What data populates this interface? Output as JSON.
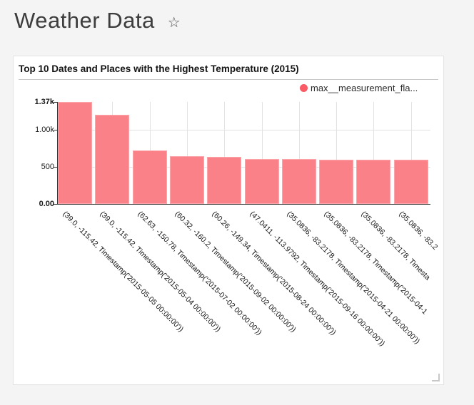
{
  "header": {
    "title": "Weather Data",
    "star_icon": "☆"
  },
  "card": {
    "title": "Top 10 Dates and Places with the Highest Temperature (2015)",
    "legend_label": "max__measurement_fla..."
  },
  "chart_data": {
    "type": "bar",
    "title": "Top 10 Dates and Places with the Highest Temperature (2015)",
    "legend": {
      "label": "max__measurement_fla...",
      "position": "top-right"
    },
    "categories": [
      "(39.0, -115.42, Timestamp('2015-05-05 00:00:00'))",
      "(39.0, -115.42, Timestamp('2015-05-04 00:00:00'))",
      "(62.63, -150.78, Timestamp('2015-07-02 00:00:00'))",
      "(60.32, -160.2, Timestamp('2015-09-02 00:00:00'))",
      "(60.26, -149.34, Timestamp('2015-08-24 00:00:00'))",
      "(47.0411, -113.9792, Timestamp('2015-09-16 00:00:00'))",
      "(35.0836, -83.2178, Timestamp('2015-04-21 00:00:00'))",
      "(35.0836, -83.2178, Timestamp('2015-04-1",
      "(35.0836, -83.2178, Timesta",
      "(35.0836, -83.2"
    ],
    "values": [
      1370,
      1200,
      720,
      640,
      632,
      604,
      599,
      597,
      596,
      595
    ],
    "xlabel": "",
    "ylabel": "",
    "ylim": [
      0,
      1370
    ],
    "y_ticks": [
      {
        "label": "0.00",
        "value": 0,
        "bold": true
      },
      {
        "label": "500",
        "value": 500,
        "bold": false
      },
      {
        "label": "1.00k",
        "value": 1000,
        "bold": false
      },
      {
        "label": "1.37k",
        "value": 1370,
        "bold": true
      }
    ],
    "grid": {
      "horizontal_at": [
        500,
        1000
      ],
      "vertical": "category-centers"
    },
    "x_label_rotation_deg": 45,
    "colors": {
      "bar": "#fb8188",
      "bar_edge": "#fca6ab",
      "legend_dot": "#fa5a63",
      "gridline": "#e2e2e2",
      "axis": "#333333"
    }
  }
}
